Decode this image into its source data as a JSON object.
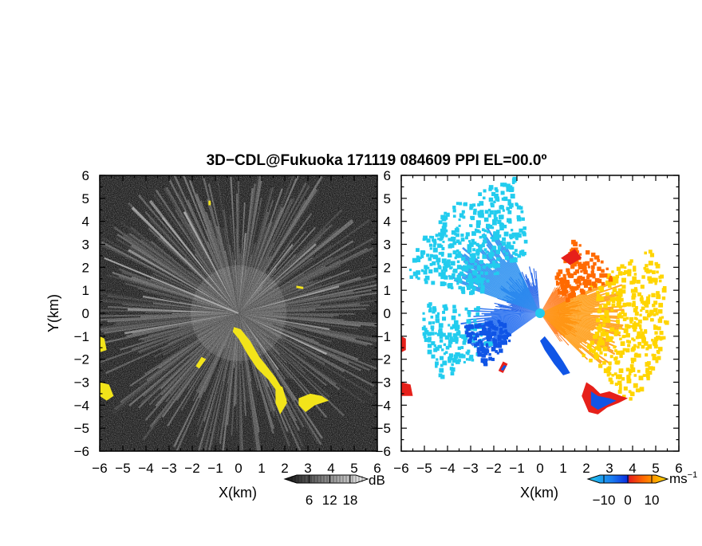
{
  "title": "3D−CDL@Fukuoka 171119 084609 PPI EL=00.0º",
  "chart_data": [
    {
      "type": "heatmap",
      "panel": "left",
      "xlabel": "X(km)",
      "ylabel": "Y(km)",
      "xlim": [
        -6,
        6
      ],
      "ylim": [
        -6,
        6
      ],
      "x_ticks": [
        "−6",
        "−5",
        "−4",
        "−3",
        "−2",
        "−1",
        "0",
        "1",
        "2",
        "3",
        "4",
        "5",
        "6"
      ],
      "y_ticks": [
        "6",
        "5",
        "4",
        "3",
        "2",
        "1",
        "0",
        "−1",
        "−2",
        "−3",
        "−4",
        "−5",
        "−6"
      ],
      "background_color": "#1e1e1e",
      "ray_color": "#e6e6e6",
      "highlight_color": "#f2e41a",
      "colorbar": {
        "label": "dB",
        "ticks": [
          "6",
          "12",
          "18"
        ],
        "tick_values": [
          6,
          12,
          18
        ],
        "range": [
          0,
          22
        ]
      }
    },
    {
      "type": "heatmap",
      "panel": "right",
      "xlabel": "X(km)",
      "ylabel": "",
      "xlim": [
        -6,
        6
      ],
      "ylim": [
        -6,
        6
      ],
      "x_ticks": [
        "−6",
        "−5",
        "−4",
        "−3",
        "−2",
        "−1",
        "0",
        "1",
        "2",
        "3",
        "4",
        "5",
        "6"
      ],
      "y_ticks": [
        "6",
        "5",
        "4",
        "3",
        "2",
        "1",
        "0",
        "−1",
        "−2",
        "−3",
        "−4",
        "−5",
        "−6"
      ],
      "colors": {
        "approaching_far": "#22ccee",
        "approaching_near": "#1055e6",
        "receding_near": "#ff6a00",
        "receding_far": "#ffd500",
        "edge": "#e6201a"
      },
      "colorbar": {
        "label": "ms",
        "label_exp": "−1",
        "ticks": [
          "−10",
          "0",
          "10"
        ],
        "tick_values": [
          -10,
          0,
          10
        ],
        "range": [
          -15,
          15
        ]
      }
    }
  ]
}
